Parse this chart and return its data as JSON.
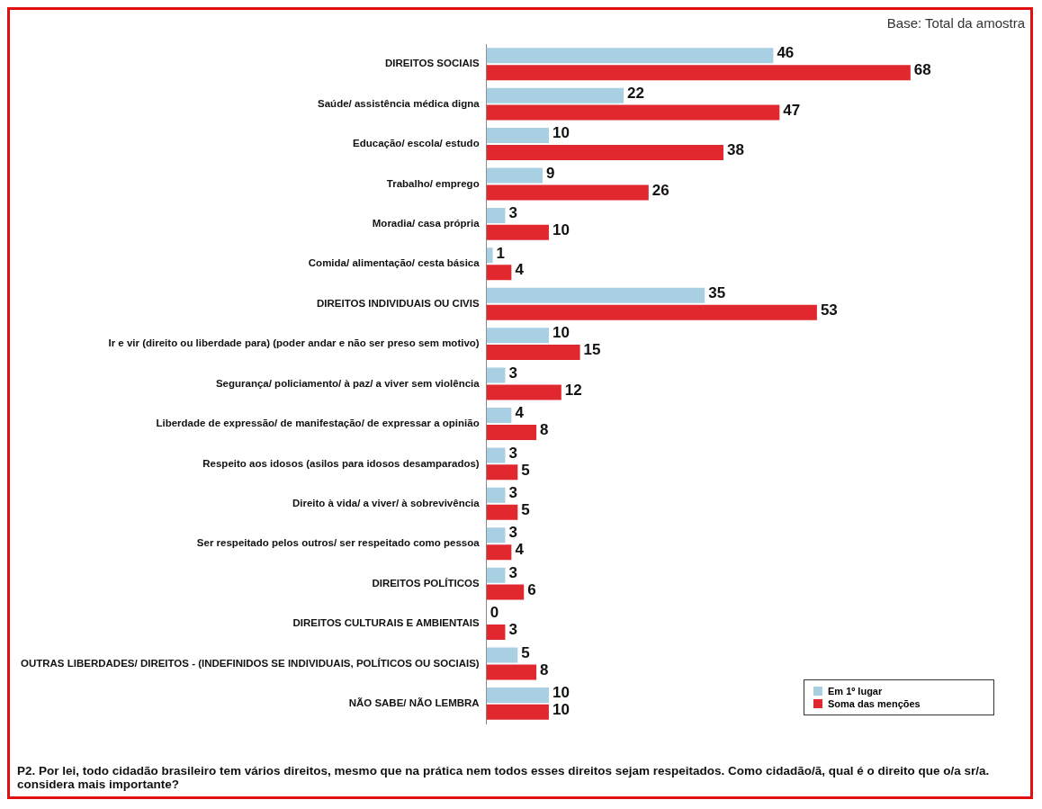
{
  "chart_data": {
    "type": "bar",
    "orientation": "horizontal",
    "data_labels": true,
    "legend": "bottom right",
    "grid": false,
    "categories": [
      "DIREITOS SOCIAIS",
      "Saúde/ assistência médica digna",
      "Educação/ escola/ estudo",
      "Trabalho/ emprego",
      "Moradia/ casa própria",
      "Comida/ alimentação/ cesta básica",
      "DIREITOS INDIVIDUAIS OU CIVIS",
      "Ir e vir (direito ou liberdade para) (poder andar e não ser preso sem motivo)",
      "Segurança/ policiamento/ à paz/ a viver sem violência",
      "Liberdade de expressão/ de manifestação/ de expressar a opinião",
      "Respeito aos idosos (asilos para idosos desamparados)",
      "Direito à vida/ a viver/ à sobrevivência",
      "Ser respeitado pelos outros/ ser respeitado como pessoa",
      "DIREITOS POLÍTICOS",
      "DIREITOS CULTURAIS E AMBIENTAIS",
      "OUTRAS LIBERDADES/ DIREITOS - (INDEFINIDOS SE INDIVIDUAIS, POLÍTICOS OU SOCIAIS)",
      "NÃO SABE/ NÃO LEMBRA"
    ],
    "series": [
      {
        "name": "Em 1º lugar",
        "color": "#a9cfe3",
        "values": [
          46,
          22,
          10,
          9,
          3,
          1,
          35,
          10,
          3,
          4,
          3,
          3,
          3,
          3,
          0,
          5,
          10
        ]
      },
      {
        "name": "Soma das menções",
        "color": "#e0282e",
        "values": [
          68,
          47,
          38,
          26,
          10,
          4,
          53,
          15,
          12,
          8,
          5,
          5,
          4,
          6,
          3,
          8,
          10
        ]
      }
    ],
    "annotations": [
      "Base: Total da amostra",
      "P2. Por lei, todo cidadão brasileiro tem vários direitos, mesmo que na prática nem todos esses direitos sejam respeitados. Como cidadão/ã, qual é o direito que o/a sr/a. considera mais importante?"
    ]
  }
}
